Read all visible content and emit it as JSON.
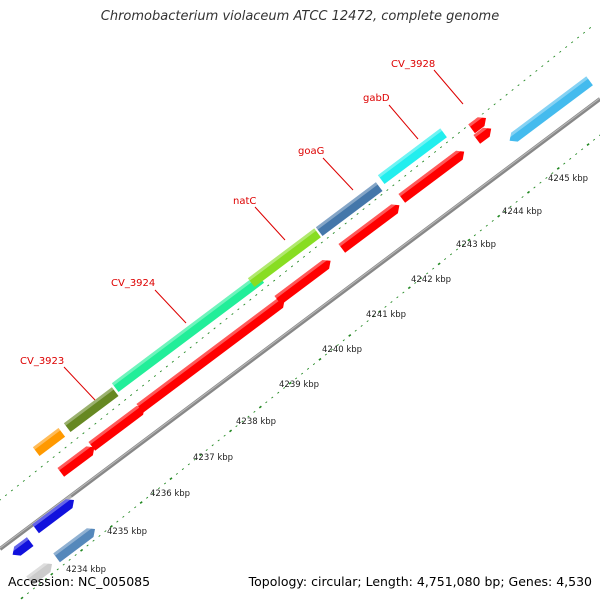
{
  "title": "Chromobacterium violaceum ATCC 12472, complete genome",
  "footer": {
    "accession": "Accession: NC_005085",
    "topology": "Topology: circular; Length: 4,751,080 bp; Genes: 4,530"
  },
  "colors": {
    "backbone": "#888888",
    "tick": "#228822",
    "label_red": "#dd0000",
    "gene_red": "#ff0000",
    "cyan": "#22eeee",
    "sky": "#44bbee",
    "steel": "#4477aa",
    "lime": "#88dd22",
    "olive": "#668822",
    "green": "#22ee99",
    "orange": "#ff9900",
    "blue": "#1111dd",
    "steelblue2": "#5588bb",
    "grey": "#cccccc"
  },
  "scale_labels": [
    "4234 kbp",
    "4235 kbp",
    "4236 kbp",
    "4237 kbp",
    "4238 kbp",
    "4239 kbp",
    "4240 kbp",
    "4241 kbp",
    "4242 kbp",
    "4243 kbp",
    "4244 kbp",
    "4245 kbp"
  ],
  "gene_labels": [
    "CV_3923",
    "CV_3924",
    "natC",
    "goaG",
    "gabD",
    "CV_3928"
  ],
  "features": [
    {
      "name": "CV_3923",
      "track": "outer",
      "color": "olive"
    },
    {
      "name": "CV_3924",
      "track": "outer",
      "color": "green"
    },
    {
      "name": "natC",
      "track": "outer",
      "color": "lime"
    },
    {
      "name": "goaG",
      "track": "outer",
      "color": "steel"
    },
    {
      "name": "gabD",
      "track": "outer",
      "color": "cyan"
    },
    {
      "name": "CV_3928",
      "track": "outer",
      "color": "gene_red"
    },
    {
      "name": "orange-feature",
      "track": "outer",
      "color": "orange"
    },
    {
      "name": "sky-feature",
      "track": "outer",
      "color": "sky"
    },
    {
      "name": "blue-feature",
      "track": "outer",
      "color": "blue"
    },
    {
      "name": "red-genes",
      "track": "inner",
      "color": "gene_red"
    },
    {
      "name": "steelblue-feature",
      "track": "inner",
      "color": "steelblue2"
    },
    {
      "name": "grey-feature",
      "track": "inner",
      "color": "grey"
    }
  ]
}
